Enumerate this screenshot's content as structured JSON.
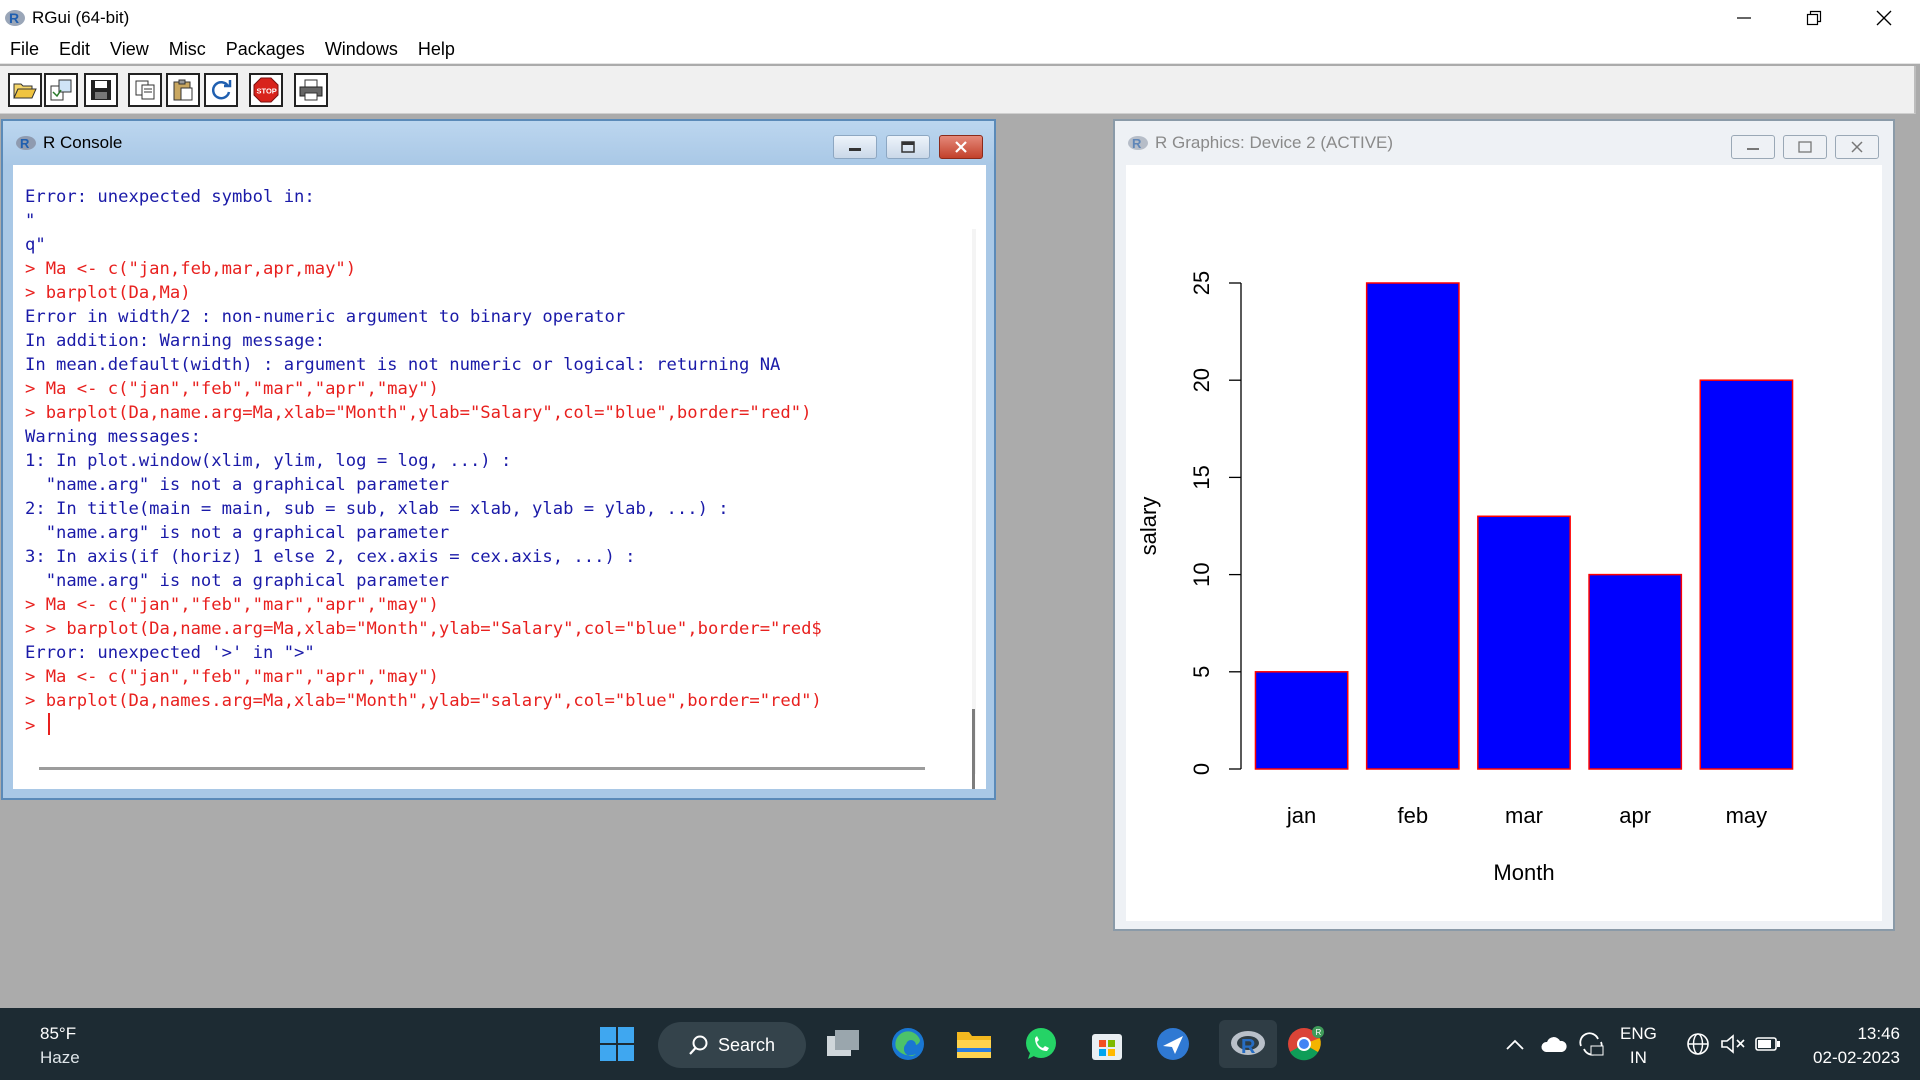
{
  "window": {
    "title": "RGui (64-bit)"
  },
  "menu": [
    "File",
    "Edit",
    "View",
    "Misc",
    "Packages",
    "Windows",
    "Help"
  ],
  "toolbar": {
    "buttons": [
      "open-script",
      "load-workspace",
      "save-workspace",
      "copy",
      "paste",
      "copy-paste",
      "stop",
      "print"
    ]
  },
  "console": {
    "title": "R Console",
    "lines": [
      {
        "t": "Error: unexpected symbol in:",
        "c": "out"
      },
      {
        "t": "\"",
        "c": "out"
      },
      {
        "t": "q\"",
        "c": "out"
      },
      {
        "t": "> Ma <- c(\"jan,feb,mar,apr,may\")",
        "c": "in"
      },
      {
        "t": "> barplot(Da,Ma)",
        "c": "in"
      },
      {
        "t": "Error in width/2 : non-numeric argument to binary operator",
        "c": "out"
      },
      {
        "t": "In addition: Warning message:",
        "c": "out"
      },
      {
        "t": "In mean.default(width) : argument is not numeric or logical: returning NA",
        "c": "out"
      },
      {
        "t": "> Ma <- c(\"jan\",\"feb\",\"mar\",\"apr\",\"may\")",
        "c": "in"
      },
      {
        "t": "> barplot(Da,name.arg=Ma,xlab=\"Month\",ylab=\"Salary\",col=\"blue\",border=\"red\")",
        "c": "in"
      },
      {
        "t": "Warning messages:",
        "c": "out"
      },
      {
        "t": "1: In plot.window(xlim, ylim, log = log, ...) :",
        "c": "out"
      },
      {
        "t": "  \"name.arg\" is not a graphical parameter",
        "c": "out"
      },
      {
        "t": "2: In title(main = main, sub = sub, xlab = xlab, ylab = ylab, ...) :",
        "c": "out"
      },
      {
        "t": "  \"name.arg\" is not a graphical parameter",
        "c": "out"
      },
      {
        "t": "3: In axis(if (horiz) 1 else 2, cex.axis = cex.axis, ...) :",
        "c": "out"
      },
      {
        "t": "  \"name.arg\" is not a graphical parameter",
        "c": "out"
      },
      {
        "t": "> Ma <- c(\"jan\",\"feb\",\"mar\",\"apr\",\"may\")",
        "c": "in"
      },
      {
        "t": "> > barplot(Da,name.arg=Ma,xlab=\"Month\",ylab=\"Salary\",col=\"blue\",border=\"red$",
        "c": "in"
      },
      {
        "t": "Error: unexpected '>' in \">\"",
        "c": "out"
      },
      {
        "t": "> Ma <- c(\"jan\",\"feb\",\"mar\",\"apr\",\"may\")",
        "c": "in"
      },
      {
        "t": "> barplot(Da,names.arg=Ma,xlab=\"Month\",ylab=\"salary\",col=\"blue\",border=\"red\")",
        "c": "in"
      }
    ],
    "prompt": "> ",
    "colors": {
      "output": "#1a1aa8",
      "input": "#e8201e"
    }
  },
  "graphics": {
    "title": "R Graphics: Device 2 (ACTIVE)"
  },
  "chart_data": {
    "type": "bar",
    "categories": [
      "jan",
      "feb",
      "mar",
      "apr",
      "may"
    ],
    "values": [
      5,
      25,
      13,
      10,
      20
    ],
    "xlabel": "Month",
    "ylabel": "salary",
    "ylim": [
      0,
      25
    ],
    "yticks": [
      0,
      5,
      10,
      15,
      20,
      25
    ],
    "fill_color": "#0000ff",
    "border_color": "#ff0000",
    "grid": false
  },
  "taskbar": {
    "weather": {
      "temp": "85°F",
      "condition": "Haze"
    },
    "search_label": "Search",
    "apps": [
      "windows-start",
      "task-view",
      "edge",
      "file-explorer",
      "whatsapp",
      "microsoft-store",
      "mail",
      "r-gui",
      "chrome"
    ],
    "language": {
      "line1": "ENG",
      "line2": "IN"
    },
    "clock": {
      "time": "13:46",
      "date": "02-02-2023"
    }
  }
}
